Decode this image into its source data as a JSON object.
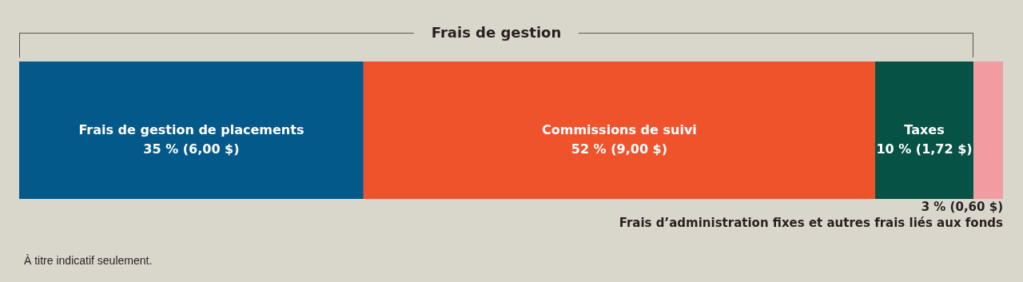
{
  "chart_data": {
    "type": "bar",
    "orientation": "horizontal",
    "stacked": true,
    "legend": false,
    "categories": [
      null
    ],
    "series": [
      {
        "name": "Frais de gestion de placements",
        "color": "#03598a",
        "values": [
          35
        ],
        "value_labels": [
          "35 % (6,00 $)"
        ]
      },
      {
        "name": "Commissions de suivi",
        "color": "#ef532c",
        "values": [
          52
        ],
        "value_labels": [
          "52 % (9,00 $)"
        ]
      },
      {
        "name": "Taxes",
        "color": "#065244",
        "values": [
          10
        ],
        "value_labels": [
          "10 % (1,72 $)"
        ]
      },
      {
        "name": "Frais d’administration fixes et autres frais liés aux fonds",
        "color": "#f29ca1",
        "values": [
          3
        ],
        "value_labels": [
          "3 % (0,60 $)"
        ]
      }
    ],
    "annotations": [
      "Frais de gestion",
      "À titre indicatif seulement."
    ]
  }
}
